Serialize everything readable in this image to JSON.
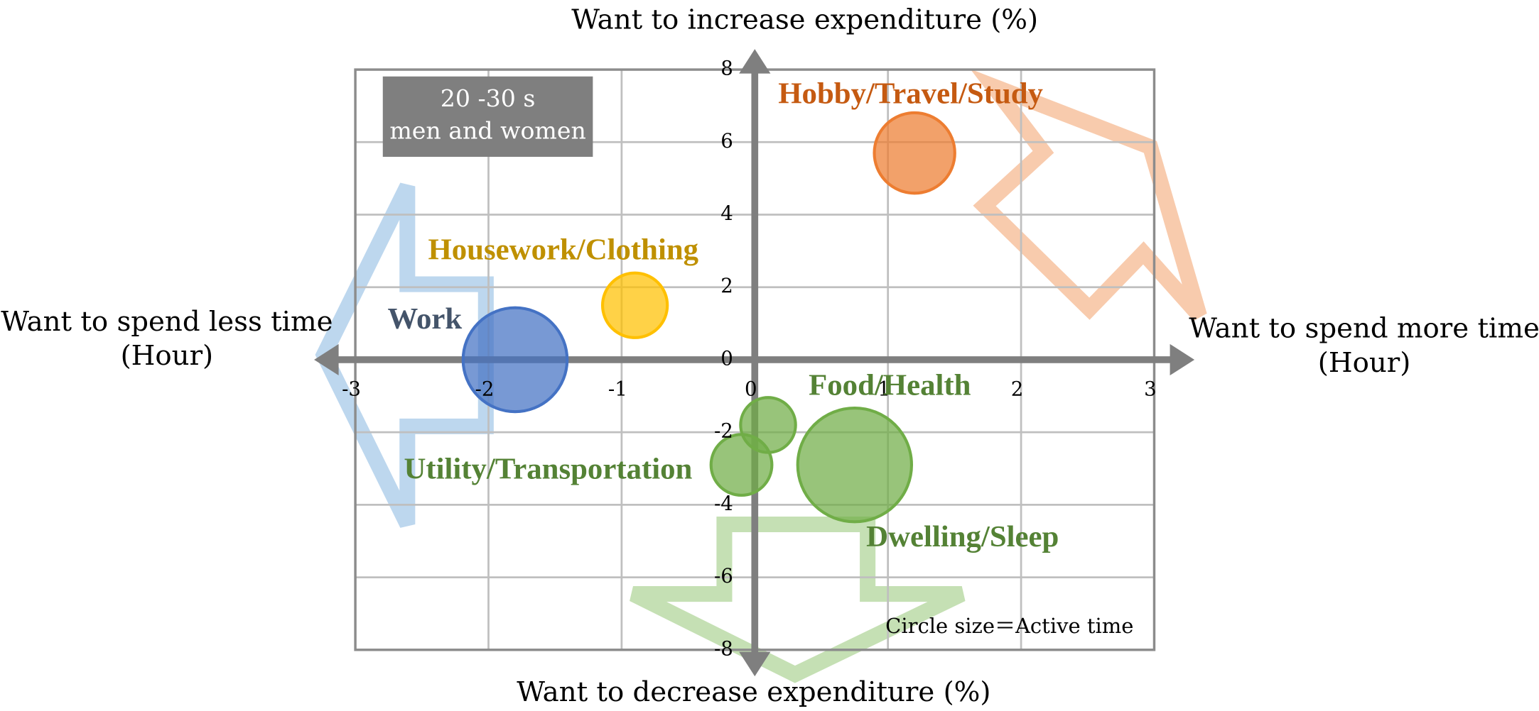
{
  "chart_data": {
    "type": "bubble",
    "axis_labels": {
      "top": "Want to increase expenditure (%)",
      "bottom": "Want to decrease expenditure (%)",
      "left": [
        "Want to spend less time",
        "(Hour)"
      ],
      "right": [
        "Want to spend more time",
        "(Hour)"
      ]
    },
    "annotations": {
      "group": [
        "20 -30 s",
        "men and women"
      ],
      "size_note": "Circle size＝Active time"
    },
    "xlim": [
      -3,
      3
    ],
    "xticks": [
      -3,
      -2,
      -1,
      0,
      1,
      2,
      3
    ],
    "ylim": [
      -8,
      8
    ],
    "yticks": [
      -8,
      -6,
      -4,
      -2,
      0,
      2,
      4,
      6,
      8
    ],
    "grid": true,
    "series": [
      {
        "name": "Hobby/Travel/Study",
        "color": "#ed7d31",
        "label_color": "#c55a11",
        "x": [
          1.2
        ],
        "values": [
          5.7
        ],
        "sizes": [
          4.1
        ]
      },
      {
        "name": "Housework/Clothing",
        "color": "#ffc000",
        "label_color": "#bf9000",
        "x": [
          -0.9
        ],
        "values": [
          1.5
        ],
        "sizes": [
          3.3
        ]
      },
      {
        "name": "Work",
        "color": "#4472c4",
        "label_color": "#44546a",
        "x": [
          -1.8
        ],
        "values": [
          0
        ],
        "sizes": [
          5.3
        ]
      },
      {
        "name": "Food/Health",
        "color": "#70ad47",
        "label_color": "#548235",
        "x": [
          0.1
        ],
        "values": [
          -1.8
        ],
        "sizes": [
          2.8
        ]
      },
      {
        "name": "Utility/Transportation",
        "color": "#70ad47",
        "label_color": "#548235",
        "x": [
          -0.1
        ],
        "values": [
          -2.9
        ],
        "sizes": [
          3.1
        ]
      },
      {
        "name": "Dwelling/Sleep",
        "color": "#70ad47",
        "label_color": "#548235",
        "x": [
          0.75
        ],
        "values": [
          -2.9
        ],
        "sizes": [
          5.8
        ]
      }
    ]
  }
}
